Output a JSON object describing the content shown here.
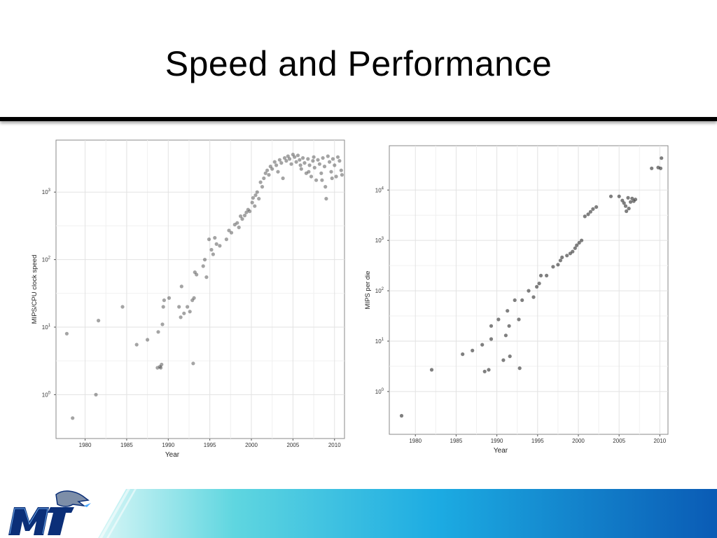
{
  "slide": {
    "title": "Speed and Performance"
  },
  "colors": {
    "title": "#000000",
    "band_start": "#7fe0e4",
    "band_mid": "#1fb7e6",
    "band_end": "#0a5bb5",
    "logo_blue": "#0b2f78"
  },
  "logo": {
    "text": "MT",
    "icon": "blue-raider-logo-icon"
  },
  "chart_data": [
    {
      "type": "scatter",
      "xlabel": "Year",
      "ylabel": "MIPS/CPU clock speed",
      "x_ticks": [
        1980,
        1985,
        1990,
        1995,
        2000,
        2005,
        2010
      ],
      "y_ticks": [
        {
          "exp": 0,
          "base": "10",
          "sup": "0"
        },
        {
          "exp": 1,
          "base": "10",
          "sup": "1"
        },
        {
          "exp": 2,
          "base": "10",
          "sup": "2"
        },
        {
          "exp": 3,
          "base": "10",
          "sup": "3"
        }
      ],
      "xlim": [
        1976.5,
        2011.2
      ],
      "y_log10_lim": [
        -0.65,
        3.77
      ],
      "y_scale": "log",
      "grid": true,
      "points": [
        [
          1977.8,
          8.0
        ],
        [
          1978.5,
          0.45
        ],
        [
          1981.3,
          1.0
        ],
        [
          1981.6,
          12.5
        ],
        [
          1984.5,
          20
        ],
        [
          1986.2,
          5.5
        ],
        [
          1987.5,
          6.5
        ],
        [
          1988.7,
          2.5
        ],
        [
          1988.8,
          8.5
        ],
        [
          1989.0,
          2.6
        ],
        [
          1989.1,
          2.5
        ],
        [
          1989.2,
          2.8
        ],
        [
          1989.3,
          11
        ],
        [
          1989.4,
          20
        ],
        [
          1989.5,
          25
        ],
        [
          1990.1,
          27
        ],
        [
          1991.3,
          20
        ],
        [
          1991.5,
          14
        ],
        [
          1991.6,
          40
        ],
        [
          1991.9,
          16
        ],
        [
          1992.3,
          20
        ],
        [
          1992.6,
          17
        ],
        [
          1992.9,
          25
        ],
        [
          1993.0,
          2.9
        ],
        [
          1993.1,
          27
        ],
        [
          1993.2,
          65
        ],
        [
          1993.4,
          60
        ],
        [
          1994.2,
          80
        ],
        [
          1994.4,
          100
        ],
        [
          1994.6,
          55
        ],
        [
          1994.9,
          200
        ],
        [
          1995.2,
          140
        ],
        [
          1995.4,
          120
        ],
        [
          1995.6,
          210
        ],
        [
          1995.8,
          170
        ],
        [
          1996.2,
          160
        ],
        [
          1997.0,
          200
        ],
        [
          1997.3,
          270
        ],
        [
          1997.6,
          250
        ],
        [
          1998.0,
          330
        ],
        [
          1998.3,
          350
        ],
        [
          1998.5,
          300
        ],
        [
          1998.7,
          440
        ],
        [
          1998.9,
          400
        ],
        [
          1999.2,
          450
        ],
        [
          1999.4,
          500
        ],
        [
          1999.6,
          550
        ],
        [
          1999.8,
          520
        ],
        [
          2000.1,
          700
        ],
        [
          2000.2,
          820
        ],
        [
          2000.4,
          620
        ],
        [
          2000.5,
          900
        ],
        [
          2000.7,
          1000
        ],
        [
          2000.9,
          800
        ],
        [
          2001.1,
          1400
        ],
        [
          2001.3,
          1200
        ],
        [
          2001.5,
          1600
        ],
        [
          2001.7,
          1900
        ],
        [
          2001.9,
          2100
        ],
        [
          2002.1,
          1800
        ],
        [
          2002.3,
          2400
        ],
        [
          2002.5,
          2200
        ],
        [
          2002.8,
          2800
        ],
        [
          2003.0,
          2500
        ],
        [
          2003.2,
          2000
        ],
        [
          2003.4,
          3000
        ],
        [
          2003.6,
          2700
        ],
        [
          2003.8,
          1600
        ],
        [
          2004.0,
          3200
        ],
        [
          2004.2,
          2900
        ],
        [
          2004.4,
          3400
        ],
        [
          2004.6,
          3100
        ],
        [
          2004.8,
          2600
        ],
        [
          2005.0,
          3600
        ],
        [
          2005.2,
          3300
        ],
        [
          2005.4,
          2800
        ],
        [
          2005.6,
          3500
        ],
        [
          2005.8,
          3000
        ],
        [
          2006.0,
          2200
        ],
        [
          2006.2,
          3200
        ],
        [
          2006.4,
          2700
        ],
        [
          2006.6,
          1900
        ],
        [
          2006.8,
          3100
        ],
        [
          2007.0,
          2500
        ],
        [
          2007.2,
          1700
        ],
        [
          2007.4,
          2900
        ],
        [
          2007.6,
          2300
        ],
        [
          2007.8,
          1500
        ],
        [
          2008.0,
          3000
        ],
        [
          2008.2,
          2600
        ],
        [
          2008.4,
          1900
        ],
        [
          2008.6,
          3200
        ],
        [
          2008.8,
          2400
        ],
        [
          2008.9,
          1200
        ],
        [
          2009.0,
          800
        ],
        [
          2009.2,
          3400
        ],
        [
          2009.4,
          2800
        ],
        [
          2009.6,
          2000
        ],
        [
          2009.8,
          3100
        ],
        [
          2010.0,
          2500
        ],
        [
          2010.2,
          1700
        ],
        [
          2010.4,
          3300
        ],
        [
          2010.6,
          2900
        ],
        [
          2010.8,
          2100
        ],
        [
          2007.5,
          3300
        ],
        [
          2008.5,
          1500
        ],
        [
          2009.7,
          1600
        ],
        [
          2006.9,
          2000
        ],
        [
          2005.9,
          2500
        ],
        [
          2010.9,
          1800
        ]
      ]
    },
    {
      "type": "scatter",
      "xlabel": "Year",
      "ylabel": "MIPS per die",
      "x_ticks": [
        1980,
        1985,
        1990,
        1995,
        2000,
        2005,
        2010
      ],
      "y_ticks": [
        {
          "exp": 0,
          "base": "10",
          "sup": "0"
        },
        {
          "exp": 1,
          "base": "10",
          "sup": "1"
        },
        {
          "exp": 2,
          "base": "10",
          "sup": "2"
        },
        {
          "exp": 3,
          "base": "10",
          "sup": "3"
        },
        {
          "exp": 4,
          "base": "10",
          "sup": "4"
        }
      ],
      "xlim": [
        1976.8,
        2011.0
      ],
      "y_log10_lim": [
        -0.85,
        4.88
      ],
      "y_scale": "log",
      "grid": true,
      "points": [
        [
          1978.3,
          0.33
        ],
        [
          1982.0,
          2.7
        ],
        [
          1985.8,
          5.5
        ],
        [
          1987.0,
          6.5
        ],
        [
          1988.2,
          8.5
        ],
        [
          1988.5,
          2.5
        ],
        [
          1989.0,
          2.7
        ],
        [
          1989.3,
          11
        ],
        [
          1989.3,
          20
        ],
        [
          1990.2,
          27
        ],
        [
          1990.8,
          4.2
        ],
        [
          1991.1,
          13
        ],
        [
          1991.3,
          40
        ],
        [
          1991.5,
          20
        ],
        [
          1991.6,
          5.0
        ],
        [
          1992.2,
          65
        ],
        [
          1992.7,
          27
        ],
        [
          1992.8,
          2.9
        ],
        [
          1993.1,
          65
        ],
        [
          1993.9,
          100
        ],
        [
          1994.5,
          75
        ],
        [
          1994.9,
          120
        ],
        [
          1995.2,
          140
        ],
        [
          1995.4,
          200
        ],
        [
          1996.1,
          200
        ],
        [
          1996.9,
          300
        ],
        [
          1997.5,
          330
        ],
        [
          1997.8,
          400
        ],
        [
          1998.0,
          460
        ],
        [
          1998.6,
          500
        ],
        [
          1999.0,
          550
        ],
        [
          1999.3,
          600
        ],
        [
          1999.6,
          700
        ],
        [
          1999.8,
          800
        ],
        [
          2000.1,
          900
        ],
        [
          2000.4,
          1000
        ],
        [
          2000.8,
          3000
        ],
        [
          2001.2,
          3300
        ],
        [
          2001.5,
          3700
        ],
        [
          2001.8,
          4200
        ],
        [
          2002.2,
          4600
        ],
        [
          2004.0,
          7500
        ],
        [
          2005.0,
          7500
        ],
        [
          2005.4,
          6200
        ],
        [
          2005.6,
          5500
        ],
        [
          2005.8,
          4800
        ],
        [
          2005.9,
          3800
        ],
        [
          2006.1,
          7000
        ],
        [
          2006.2,
          4300
        ],
        [
          2006.4,
          5800
        ],
        [
          2006.6,
          6800
        ],
        [
          2006.8,
          6000
        ],
        [
          2007.0,
          6500
        ],
        [
          2009.0,
          27000
        ],
        [
          2009.8,
          28000
        ],
        [
          2010.1,
          27000
        ],
        [
          2010.2,
          43000
        ]
      ]
    }
  ]
}
